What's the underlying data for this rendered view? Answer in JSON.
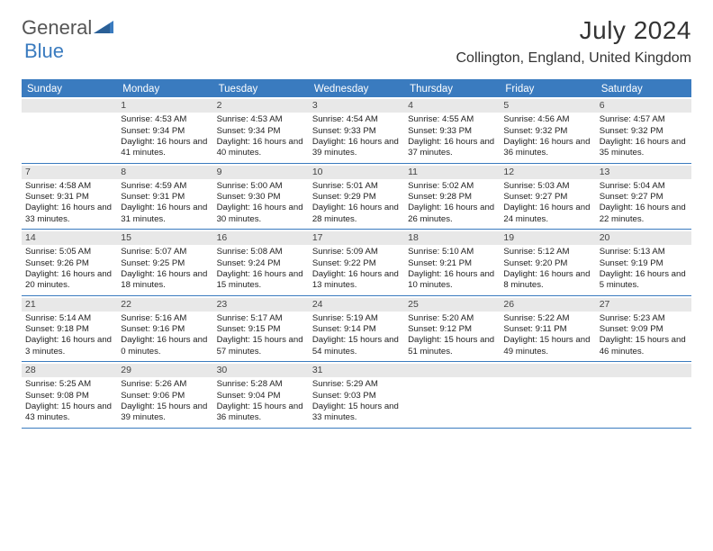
{
  "logo": {
    "text1": "General",
    "text2": "Blue",
    "color_general": "#555555",
    "color_blue": "#3a7bbf"
  },
  "title": {
    "month_year": "July 2024",
    "location": "Collington, England, United Kingdom"
  },
  "colors": {
    "header_bg": "#3a7bbf",
    "daynum_bg": "#e8e8e8",
    "text": "#222222",
    "border": "#3a7bbf",
    "background": "#ffffff"
  },
  "weekdays": [
    "Sunday",
    "Monday",
    "Tuesday",
    "Wednesday",
    "Thursday",
    "Friday",
    "Saturday"
  ],
  "weeks": [
    [
      {
        "num": "",
        "lines": []
      },
      {
        "num": "1",
        "lines": [
          "Sunrise: 4:53 AM",
          "Sunset: 9:34 PM",
          "Daylight: 16 hours and 41 minutes."
        ]
      },
      {
        "num": "2",
        "lines": [
          "Sunrise: 4:53 AM",
          "Sunset: 9:34 PM",
          "Daylight: 16 hours and 40 minutes."
        ]
      },
      {
        "num": "3",
        "lines": [
          "Sunrise: 4:54 AM",
          "Sunset: 9:33 PM",
          "Daylight: 16 hours and 39 minutes."
        ]
      },
      {
        "num": "4",
        "lines": [
          "Sunrise: 4:55 AM",
          "Sunset: 9:33 PM",
          "Daylight: 16 hours and 37 minutes."
        ]
      },
      {
        "num": "5",
        "lines": [
          "Sunrise: 4:56 AM",
          "Sunset: 9:32 PM",
          "Daylight: 16 hours and 36 minutes."
        ]
      },
      {
        "num": "6",
        "lines": [
          "Sunrise: 4:57 AM",
          "Sunset: 9:32 PM",
          "Daylight: 16 hours and 35 minutes."
        ]
      }
    ],
    [
      {
        "num": "7",
        "lines": [
          "Sunrise: 4:58 AM",
          "Sunset: 9:31 PM",
          "Daylight: 16 hours and 33 minutes."
        ]
      },
      {
        "num": "8",
        "lines": [
          "Sunrise: 4:59 AM",
          "Sunset: 9:31 PM",
          "Daylight: 16 hours and 31 minutes."
        ]
      },
      {
        "num": "9",
        "lines": [
          "Sunrise: 5:00 AM",
          "Sunset: 9:30 PM",
          "Daylight: 16 hours and 30 minutes."
        ]
      },
      {
        "num": "10",
        "lines": [
          "Sunrise: 5:01 AM",
          "Sunset: 9:29 PM",
          "Daylight: 16 hours and 28 minutes."
        ]
      },
      {
        "num": "11",
        "lines": [
          "Sunrise: 5:02 AM",
          "Sunset: 9:28 PM",
          "Daylight: 16 hours and 26 minutes."
        ]
      },
      {
        "num": "12",
        "lines": [
          "Sunrise: 5:03 AM",
          "Sunset: 9:27 PM",
          "Daylight: 16 hours and 24 minutes."
        ]
      },
      {
        "num": "13",
        "lines": [
          "Sunrise: 5:04 AM",
          "Sunset: 9:27 PM",
          "Daylight: 16 hours and 22 minutes."
        ]
      }
    ],
    [
      {
        "num": "14",
        "lines": [
          "Sunrise: 5:05 AM",
          "Sunset: 9:26 PM",
          "Daylight: 16 hours and 20 minutes."
        ]
      },
      {
        "num": "15",
        "lines": [
          "Sunrise: 5:07 AM",
          "Sunset: 9:25 PM",
          "Daylight: 16 hours and 18 minutes."
        ]
      },
      {
        "num": "16",
        "lines": [
          "Sunrise: 5:08 AM",
          "Sunset: 9:24 PM",
          "Daylight: 16 hours and 15 minutes."
        ]
      },
      {
        "num": "17",
        "lines": [
          "Sunrise: 5:09 AM",
          "Sunset: 9:22 PM",
          "Daylight: 16 hours and 13 minutes."
        ]
      },
      {
        "num": "18",
        "lines": [
          "Sunrise: 5:10 AM",
          "Sunset: 9:21 PM",
          "Daylight: 16 hours and 10 minutes."
        ]
      },
      {
        "num": "19",
        "lines": [
          "Sunrise: 5:12 AM",
          "Sunset: 9:20 PM",
          "Daylight: 16 hours and 8 minutes."
        ]
      },
      {
        "num": "20",
        "lines": [
          "Sunrise: 5:13 AM",
          "Sunset: 9:19 PM",
          "Daylight: 16 hours and 5 minutes."
        ]
      }
    ],
    [
      {
        "num": "21",
        "lines": [
          "Sunrise: 5:14 AM",
          "Sunset: 9:18 PM",
          "Daylight: 16 hours and 3 minutes."
        ]
      },
      {
        "num": "22",
        "lines": [
          "Sunrise: 5:16 AM",
          "Sunset: 9:16 PM",
          "Daylight: 16 hours and 0 minutes."
        ]
      },
      {
        "num": "23",
        "lines": [
          "Sunrise: 5:17 AM",
          "Sunset: 9:15 PM",
          "Daylight: 15 hours and 57 minutes."
        ]
      },
      {
        "num": "24",
        "lines": [
          "Sunrise: 5:19 AM",
          "Sunset: 9:14 PM",
          "Daylight: 15 hours and 54 minutes."
        ]
      },
      {
        "num": "25",
        "lines": [
          "Sunrise: 5:20 AM",
          "Sunset: 9:12 PM",
          "Daylight: 15 hours and 51 minutes."
        ]
      },
      {
        "num": "26",
        "lines": [
          "Sunrise: 5:22 AM",
          "Sunset: 9:11 PM",
          "Daylight: 15 hours and 49 minutes."
        ]
      },
      {
        "num": "27",
        "lines": [
          "Sunrise: 5:23 AM",
          "Sunset: 9:09 PM",
          "Daylight: 15 hours and 46 minutes."
        ]
      }
    ],
    [
      {
        "num": "28",
        "lines": [
          "Sunrise: 5:25 AM",
          "Sunset: 9:08 PM",
          "Daylight: 15 hours and 43 minutes."
        ]
      },
      {
        "num": "29",
        "lines": [
          "Sunrise: 5:26 AM",
          "Sunset: 9:06 PM",
          "Daylight: 15 hours and 39 minutes."
        ]
      },
      {
        "num": "30",
        "lines": [
          "Sunrise: 5:28 AM",
          "Sunset: 9:04 PM",
          "Daylight: 15 hours and 36 minutes."
        ]
      },
      {
        "num": "31",
        "lines": [
          "Sunrise: 5:29 AM",
          "Sunset: 9:03 PM",
          "Daylight: 15 hours and 33 minutes."
        ]
      },
      {
        "num": "",
        "lines": []
      },
      {
        "num": "",
        "lines": []
      },
      {
        "num": "",
        "lines": []
      }
    ]
  ]
}
